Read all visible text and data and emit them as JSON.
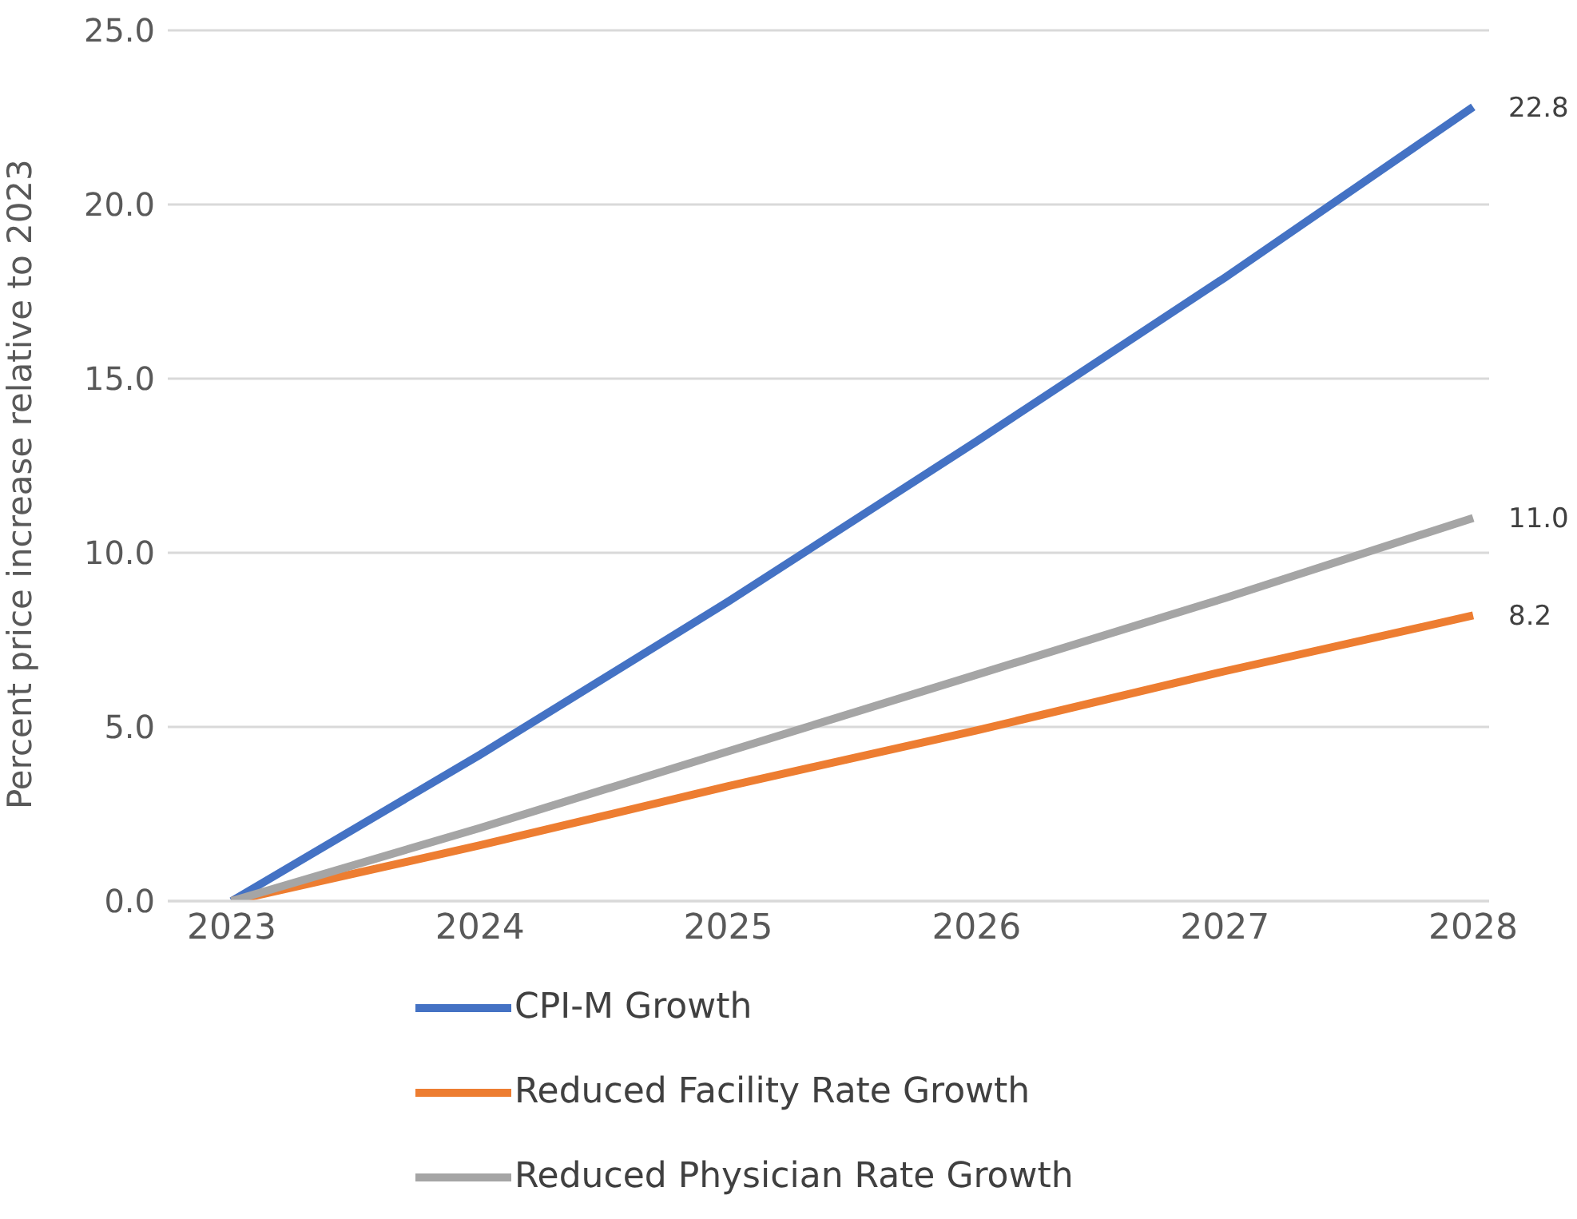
{
  "chart_data": {
    "type": "line",
    "ylabel": "Percent price increase relative to 2023",
    "categories": [
      "2023",
      "2024",
      "2025",
      "2026",
      "2027",
      "2028"
    ],
    "series": [
      {
        "name": "CPI-M Growth",
        "color": "#4472c4",
        "values": [
          0,
          4.2,
          8.6,
          13.2,
          17.9,
          22.8
        ],
        "value_labels": [
          null,
          null,
          null,
          null,
          null,
          "22.8"
        ]
      },
      {
        "name": "Reduced Facility Rate Growth",
        "color": "#ed7d31",
        "values": [
          0,
          1.6,
          3.3,
          4.9,
          6.6,
          8.2
        ],
        "value_labels": [
          null,
          null,
          null,
          null,
          null,
          "8.2"
        ]
      },
      {
        "name": "Reduced Physician Rate Growth",
        "color": "#a5a5a5",
        "values": [
          0,
          2.1,
          4.3,
          6.5,
          8.7,
          11.0
        ],
        "value_labels": [
          null,
          null,
          null,
          null,
          null,
          "11.0"
        ]
      }
    ],
    "ylim": [
      0,
      25
    ],
    "yticks": [
      {
        "value": 0,
        "label": "0.0"
      },
      {
        "value": 5,
        "label": "5.0"
      },
      {
        "value": 10,
        "label": "10.0"
      },
      {
        "value": 15,
        "label": "15.0"
      },
      {
        "value": 20,
        "label": "20.0"
      },
      {
        "value": 25,
        "label": "25.0"
      }
    ],
    "grid": "y",
    "legend": "bottom",
    "marker": "none",
    "line_style": "solid"
  }
}
